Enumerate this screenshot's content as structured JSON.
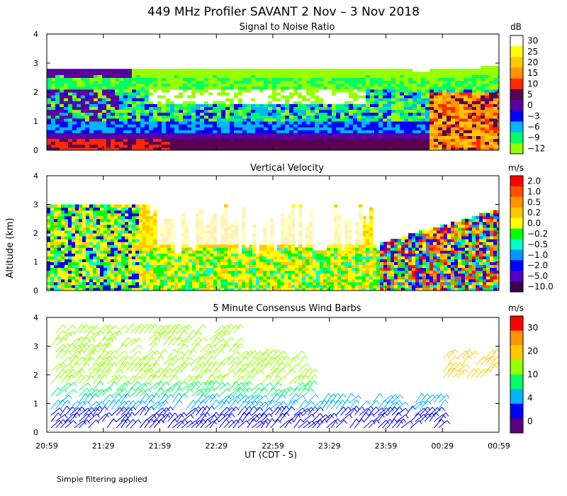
{
  "title": "449 MHz Profiler SAVANT  2 Nov –  3 Nov 2018",
  "footer_note": "Simple filtering applied",
  "y_label": "Altitude (km)",
  "x_label": "UT  (CDT - 5)",
  "chart_data": [
    {
      "type": "heatmap",
      "title": "Signal to Noise Ratio",
      "unit": "dB",
      "x_ticks": [
        "20:59",
        "21:29",
        "21:59",
        "22:29",
        "22:59",
        "23:29",
        "23:59",
        "00:29",
        "00:59"
      ],
      "y_ticks": [
        "0",
        "1",
        "2",
        "3",
        "4"
      ],
      "ylim": [
        0,
        4
      ],
      "colorbar_labels": [
        "30",
        "25",
        "20",
        "15",
        "10",
        "5",
        "0",
        "−3",
        "−6",
        "−9",
        "−12"
      ],
      "colorbar_colors": [
        "#ffffff",
        "#ffff00",
        "#ffc800",
        "#ff9600",
        "#ff2800",
        "#5a0050",
        "#5a00a0",
        "#0000ff",
        "#00b4ff",
        "#00ff64",
        "#96ff00"
      ]
    },
    {
      "type": "heatmap",
      "title": "Vertical Velocity",
      "unit": "m/s",
      "x_ticks": [
        "20:59",
        "21:29",
        "21:59",
        "22:29",
        "22:59",
        "23:29",
        "23:59",
        "00:29",
        "00:59"
      ],
      "y_ticks": [
        "0",
        "1",
        "2",
        "3",
        "4"
      ],
      "ylim": [
        0,
        4
      ],
      "colorbar_labels": [
        "2.0",
        "1.0",
        "0.5",
        "0.2",
        "0.0",
        "−0.2",
        "−0.5",
        "−1.0",
        "−2.0",
        "−5.0",
        "−10.0"
      ],
      "colorbar_colors": [
        "#ff0000",
        "#ff5000",
        "#ff9600",
        "#ffc800",
        "#ffff00",
        "#00ff00",
        "#00ffc8",
        "#0096ff",
        "#0000ff",
        "#5000c8",
        "#3c0050"
      ]
    },
    {
      "type": "scatter",
      "title": "5 Minute Consensus Wind Barbs",
      "unit": "m/s",
      "x_ticks": [
        "20:59",
        "21:29",
        "21:59",
        "22:29",
        "22:59",
        "23:29",
        "23:59",
        "00:29",
        "00:59"
      ],
      "y_ticks": [
        "0",
        "1",
        "2",
        "3",
        "4"
      ],
      "ylim": [
        0,
        4
      ],
      "colorbar_labels": [
        "30",
        "20",
        "10",
        "4",
        "0"
      ],
      "colorbar_colors": [
        "#ff0000",
        "#ff9600",
        "#ffc800",
        "#96ff00",
        "#00ff64",
        "#00b4ff",
        "#0000ff",
        "#5a0078"
      ]
    }
  ]
}
